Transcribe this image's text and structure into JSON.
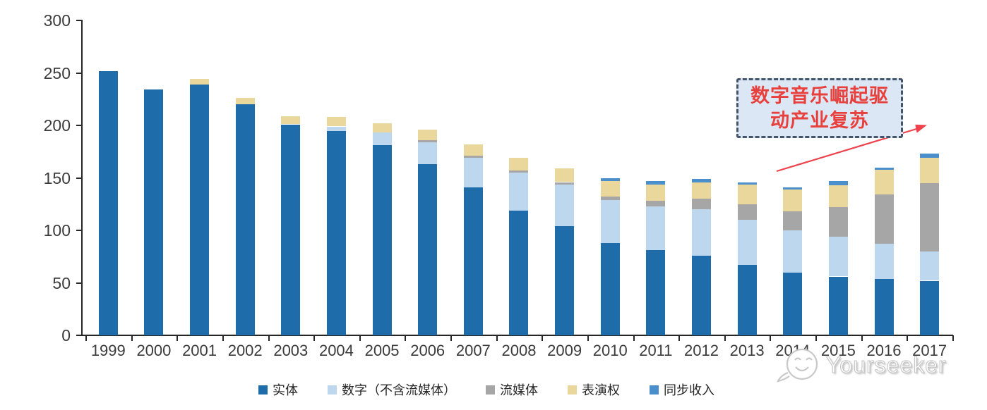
{
  "chart_data": {
    "type": "bar",
    "stacked": true,
    "title": "",
    "xlabel": "",
    "ylabel": "",
    "categories": [
      "1999",
      "2000",
      "2001",
      "2002",
      "2003",
      "2004",
      "2005",
      "2006",
      "2007",
      "2008",
      "2009",
      "2010",
      "2011",
      "2012",
      "2013",
      "2014",
      "2015",
      "2016",
      "2017"
    ],
    "series": [
      {
        "name": "实体",
        "color": "#1f6cab",
        "values": [
          252,
          234,
          239,
          220,
          201,
          195,
          181,
          163,
          141,
          119,
          104,
          88,
          81,
          76,
          67,
          60,
          56,
          54,
          52
        ]
      },
      {
        "name": "数字（不含流媒体）",
        "color": "#bdd7ee",
        "values": [
          0,
          0,
          0,
          0,
          0,
          4,
          12,
          21,
          28,
          36,
          40,
          41,
          42,
          44,
          43,
          40,
          38,
          33,
          28
        ]
      },
      {
        "name": "流媒体",
        "color": "#a6a6a6",
        "values": [
          0,
          0,
          0,
          0,
          0,
          0,
          0,
          2,
          2,
          2,
          2,
          3,
          5,
          10,
          15,
          18,
          28,
          47,
          65
        ]
      },
      {
        "name": "表演权",
        "color": "#e9d79b",
        "values": [
          0,
          0,
          5,
          6,
          8,
          9,
          9,
          10,
          11,
          12,
          13,
          15,
          16,
          16,
          19,
          21,
          21,
          24,
          24
        ]
      },
      {
        "name": "同步收入",
        "color": "#4a8ecb",
        "values": [
          0,
          0,
          0,
          0,
          0,
          0,
          0,
          0,
          0,
          0,
          0,
          3,
          3,
          3,
          2,
          2,
          4,
          2,
          4
        ]
      }
    ],
    "ylim": [
      0,
      300
    ],
    "yticks": [
      0,
      50,
      100,
      150,
      200,
      250,
      300
    ],
    "grid": false,
    "legend_position": "bottom"
  },
  "annotation": {
    "lines": [
      "数字音乐崛起驱",
      "动产业复苏"
    ],
    "text_color": "#e8403c",
    "border_color": "#44546a",
    "fill_color": "#dbe7f5",
    "arrow_color": "#ef424c"
  },
  "watermark": {
    "text": "Yourseeker",
    "icon": "smiley-chat-bubble-icon"
  },
  "axis": {
    "line_color": "#262626",
    "label_color": "#3b3b3b"
  }
}
